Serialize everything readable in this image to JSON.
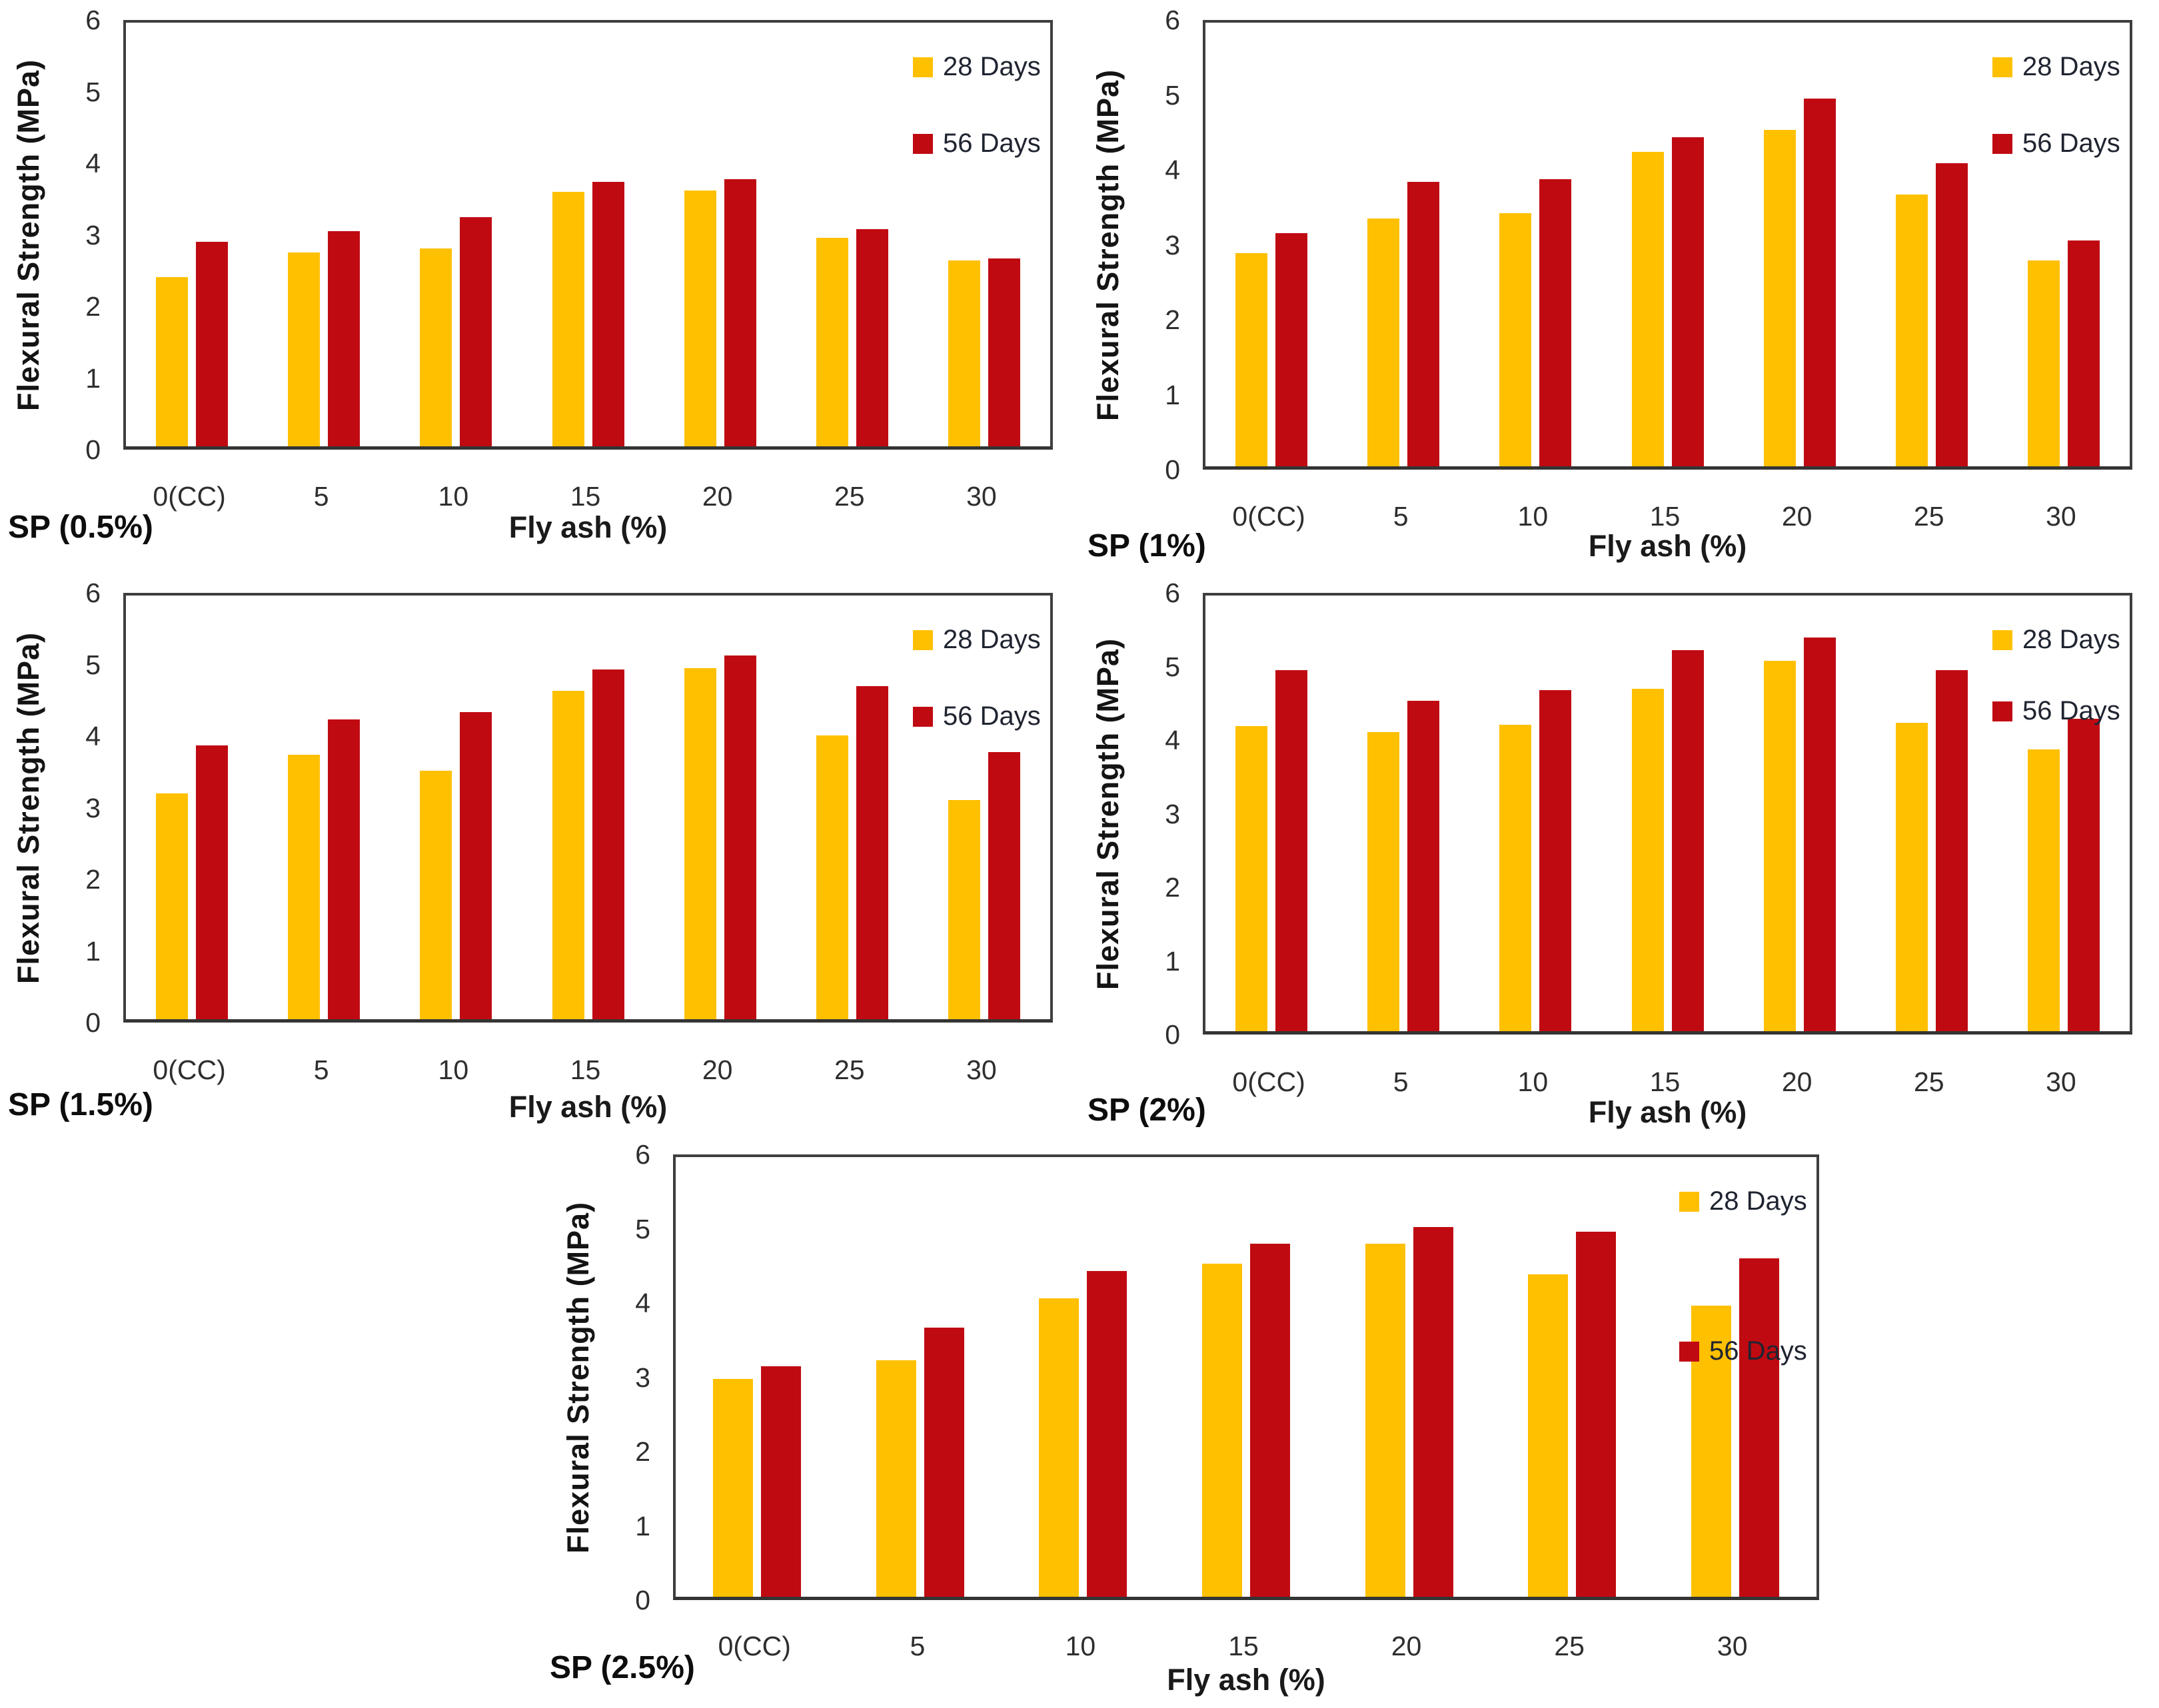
{
  "figure": {
    "ylabel": "Flexural Strength (MPa)",
    "xlabel": "Fly ash (%)",
    "ytick_labels": [
      "0",
      "1",
      "2",
      "3",
      "4",
      "5",
      "6"
    ],
    "legend": [
      "28 Days",
      "56 Days"
    ],
    "colors": {
      "series_28_days": "#FFC000",
      "series_56_days": "#C00A12",
      "axis_border": "#3E3E3E",
      "text": "#1F1F1F"
    }
  },
  "chart_data": [
    {
      "type": "bar",
      "title": "SP (0.5%)",
      "xlabel": "Fly ash (%)",
      "ylabel": "Flexural Strength (MPa)",
      "ylim": [
        0,
        6
      ],
      "grid": false,
      "legend_position": "top-right",
      "categories": [
        "0(CC)",
        "5",
        "10",
        "15",
        "20",
        "25",
        "30"
      ],
      "series": [
        {
          "name": "28 Days",
          "color": "#FFC000",
          "values": [
            2.4,
            2.75,
            2.8,
            3.6,
            3.62,
            2.95,
            2.63
          ]
        },
        {
          "name": "56 Days",
          "color": "#C00A12",
          "values": [
            2.9,
            3.05,
            3.25,
            3.75,
            3.78,
            3.08,
            2.66
          ]
        }
      ]
    },
    {
      "type": "bar",
      "title": "SP (1%)",
      "xlabel": "Fly ash (%)",
      "ylabel": "Flexural Strength (MPa)",
      "ylim": [
        0,
        6
      ],
      "grid": false,
      "legend_position": "top-right",
      "categories": [
        "0(CC)",
        "5",
        "10",
        "15",
        "20",
        "25",
        "30"
      ],
      "series": [
        {
          "name": "28 Days",
          "color": "#FFC000",
          "values": [
            2.88,
            3.35,
            3.42,
            4.25,
            4.55,
            3.68,
            2.78
          ]
        },
        {
          "name": "56 Days",
          "color": "#C00A12",
          "values": [
            3.15,
            3.85,
            3.88,
            4.45,
            4.97,
            4.1,
            3.05
          ]
        }
      ]
    },
    {
      "type": "bar",
      "title": "SP (1.5%)",
      "xlabel": "Fly ash (%)",
      "ylabel": "Flexural Strength (MPa)",
      "ylim": [
        0,
        6
      ],
      "grid": false,
      "legend_position": "top-right",
      "categories": [
        "0(CC)",
        "5",
        "10",
        "15",
        "20",
        "25",
        "30"
      ],
      "series": [
        {
          "name": "28 Days",
          "color": "#FFC000",
          "values": [
            3.2,
            3.75,
            3.52,
            4.65,
            4.97,
            4.02,
            3.1
          ]
        },
        {
          "name": "56 Days",
          "color": "#C00A12",
          "values": [
            3.88,
            4.25,
            4.35,
            4.95,
            5.15,
            4.72,
            3.78
          ]
        }
      ]
    },
    {
      "type": "bar",
      "title": "SP (2%)",
      "xlabel": "Fly ash (%)",
      "ylabel": "Flexural Strength (MPa)",
      "ylim": [
        0,
        6
      ],
      "grid": false,
      "legend_position": "top-right",
      "categories": [
        "0(CC)",
        "5",
        "10",
        "15",
        "20",
        "25",
        "30"
      ],
      "series": [
        {
          "name": "28 Days",
          "color": "#FFC000",
          "values": [
            4.2,
            4.12,
            4.22,
            4.72,
            5.1,
            4.25,
            3.88
          ]
        },
        {
          "name": "56 Days",
          "color": "#C00A12",
          "values": [
            4.97,
            4.55,
            4.7,
            5.25,
            5.42,
            4.97,
            4.3
          ]
        }
      ]
    },
    {
      "type": "bar",
      "title": "SP (2.5%)",
      "xlabel": "Fly ash (%)",
      "ylabel": "Flexural Strength (MPa)",
      "ylim": [
        0,
        6
      ],
      "grid": false,
      "legend_position": "top-right",
      "categories": [
        "0(CC)",
        "5",
        "10",
        "15",
        "20",
        "25",
        "30"
      ],
      "series": [
        {
          "name": "28 Days",
          "color": "#FFC000",
          "values": [
            2.97,
            3.23,
            4.07,
            4.55,
            4.82,
            4.4,
            3.97
          ]
        },
        {
          "name": "56 Days",
          "color": "#C00A12",
          "values": [
            3.15,
            3.67,
            4.45,
            4.82,
            5.05,
            4.98,
            4.62
          ]
        }
      ]
    }
  ]
}
